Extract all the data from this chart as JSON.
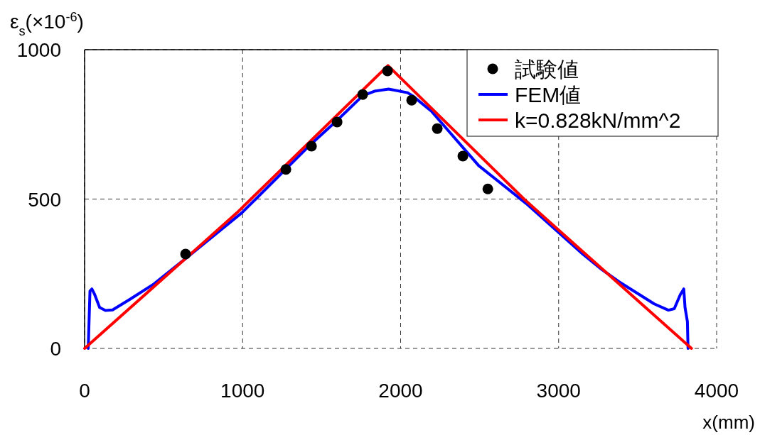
{
  "chart_data": {
    "type": "line",
    "xlabel": "x(mm)",
    "ylabel": "ε$_{s}$(×10$^{-6}$)",
    "xlim": [
      0,
      4000
    ],
    "ylim": [
      0,
      1000
    ],
    "xticks": [
      0,
      1000,
      2000,
      3000,
      4000
    ],
    "yticks": [
      0,
      500,
      1000
    ],
    "grid": true,
    "legend": "top right",
    "series": [
      {
        "name": "試験値",
        "type": "scatter",
        "marker": "circle",
        "color": "#000000",
        "x": [
          639,
          1274,
          1436,
          1598,
          1760,
          1917,
          2070,
          2232,
          2394,
          2552
        ],
        "values": [
          316,
          599,
          677,
          758,
          850,
          929,
          831,
          736,
          644,
          534
        ]
      },
      {
        "name": "FEM値",
        "color": "#0000ff",
        "x": [
          23,
          34,
          46,
          64,
          95,
          132,
          177,
          289,
          439,
          635,
          995,
          1085,
          1415,
          1595,
          1760,
          1834,
          1924,
          2044,
          2075,
          2195,
          2494,
          2795,
          3155,
          3274,
          3380,
          3605,
          3695,
          3732,
          3770,
          3792,
          3800,
          3815,
          3819
        ],
        "values": [
          0,
          192,
          199,
          180,
          137,
          127,
          129,
          165,
          216,
          299,
          454,
          501,
          675,
          762,
          846,
          861,
          868,
          856,
          846,
          794,
          612,
          485,
          315,
          264,
          224,
          149,
          128,
          133,
          180,
          199,
          137,
          90,
          0
        ]
      },
      {
        "name": "k=0.828kN/mm^2",
        "color": "#ff0000",
        "x": [
          0,
          964,
          1053,
          1920,
          2781,
          3155,
          3841
        ],
        "values": [
          0,
          454,
          500,
          947,
          500,
          323,
          0
        ]
      }
    ]
  }
}
